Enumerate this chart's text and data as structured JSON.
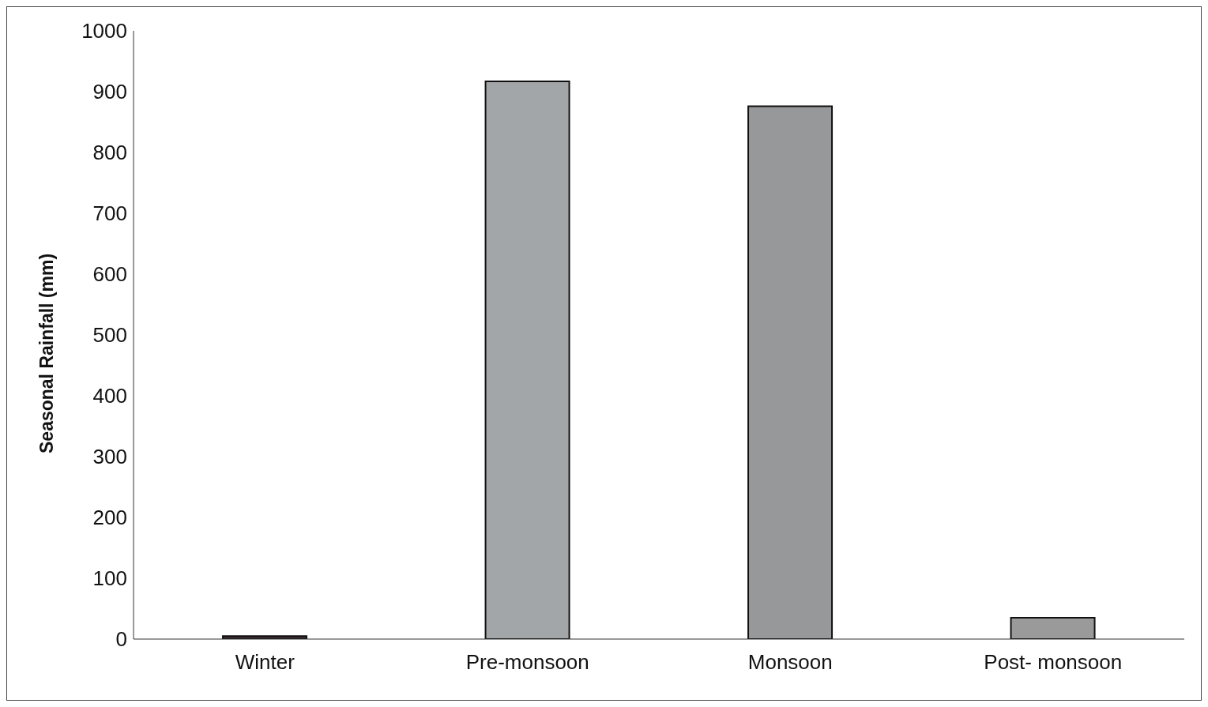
{
  "chart_data": {
    "type": "bar",
    "ylabel": "Seasonal Rainfall (mm)",
    "categories": [
      "Winter",
      "Pre-monsoon",
      "Monsoon",
      "Post- monsoon"
    ],
    "values": [
      5,
      917,
      876,
      35
    ],
    "colors": [
      "#3a2a2e",
      "#a3a6a8",
      "#979899",
      "#9a9a9a"
    ],
    "ylim": [
      0,
      1000
    ],
    "yticks": [
      0,
      100,
      200,
      300,
      400,
      500,
      600,
      700,
      800,
      900,
      1000
    ],
    "grid": false,
    "legend": false
  }
}
